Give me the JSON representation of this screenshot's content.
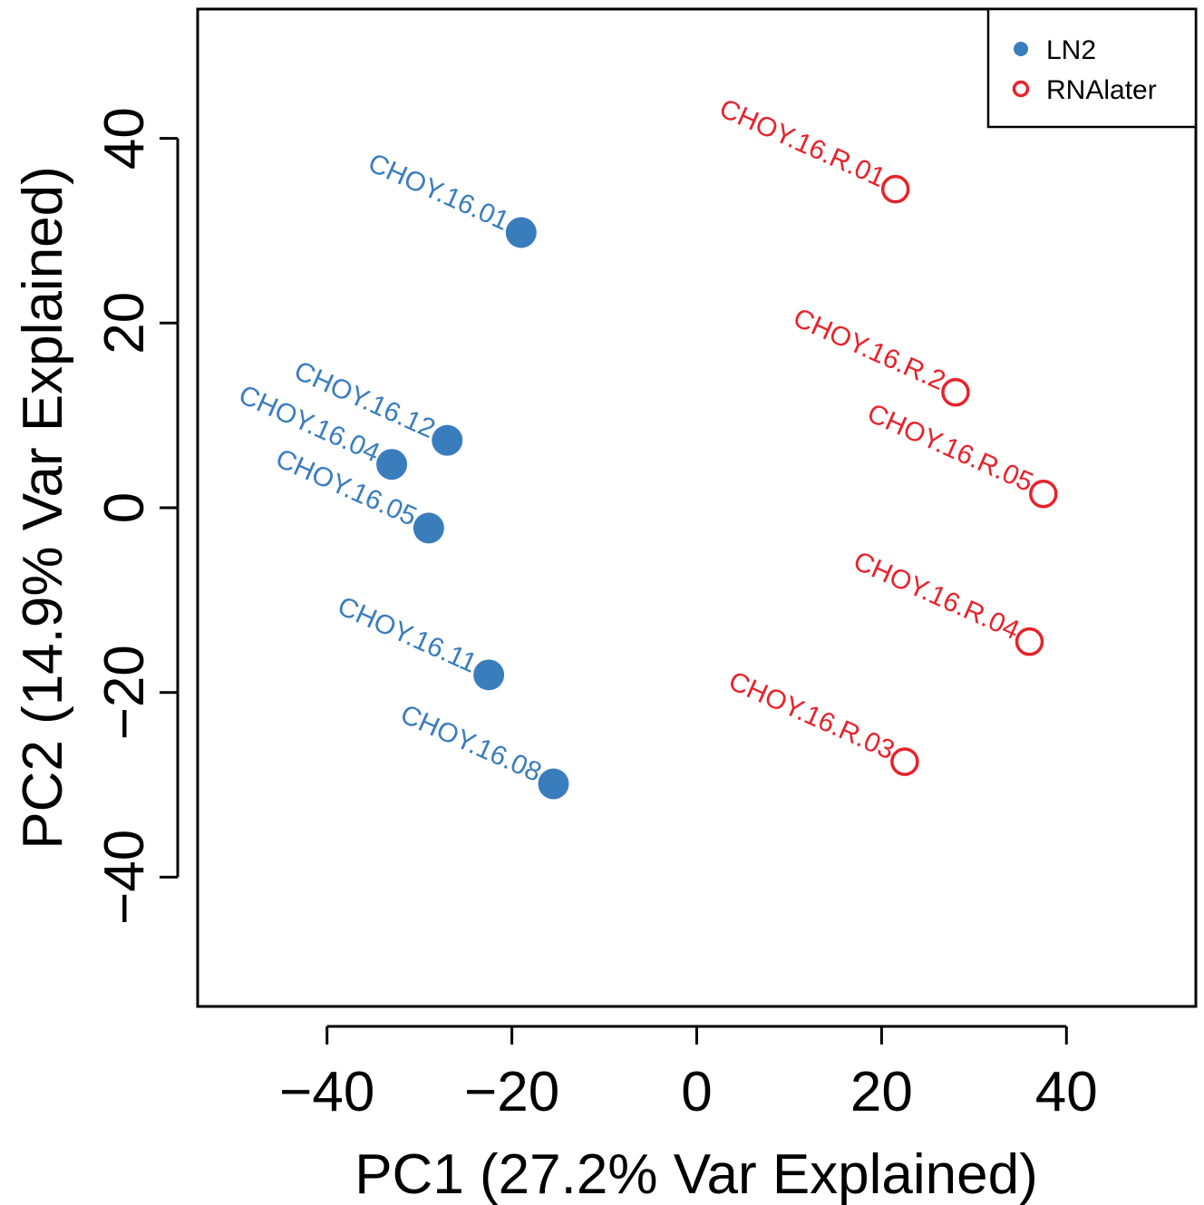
{
  "chart_data": {
    "type": "scatter",
    "xlabel": "PC1 (27.2% Var Explained)",
    "ylabel": "PC2 (14.9% Var Explained)",
    "xlim": [
      -54,
      54
    ],
    "ylim": [
      -54,
      54
    ],
    "xticks": [
      -40,
      -20,
      0,
      20,
      40
    ],
    "yticks": [
      -40,
      -20,
      0,
      20,
      40
    ],
    "grid": false,
    "legend_position": "top-right",
    "series": [
      {
        "name": "LN2",
        "color": "#3a7dbd",
        "marker": "filled-circle",
        "points": [
          {
            "x": -19,
            "y": 29.8,
            "label": "CHOY.16.01"
          },
          {
            "x": -27,
            "y": 7.3,
            "label": "CHOY.16.12"
          },
          {
            "x": -33,
            "y": 4.7,
            "label": "CHOY.16.04"
          },
          {
            "x": -29,
            "y": -2.2,
            "label": "CHOY.16.05"
          },
          {
            "x": -22.5,
            "y": -18.1,
            "label": "CHOY.16.11"
          },
          {
            "x": -15.5,
            "y": -29.9,
            "label": "CHOY.16.08"
          }
        ]
      },
      {
        "name": "RNAlater",
        "color": "#e8222b",
        "marker": "open-circle",
        "points": [
          {
            "x": 21.5,
            "y": 34.5,
            "label": "CHOY.16.R.01"
          },
          {
            "x": 28,
            "y": 12.5,
            "label": "CHOY.16.R.2"
          },
          {
            "x": 37.5,
            "y": 1.5,
            "label": "CHOY.16.R.05"
          },
          {
            "x": 36,
            "y": -14.5,
            "label": "CHOY.16.R.04"
          },
          {
            "x": 22.5,
            "y": -27.5,
            "label": "CHOY.16.R.03"
          }
        ]
      }
    ]
  }
}
